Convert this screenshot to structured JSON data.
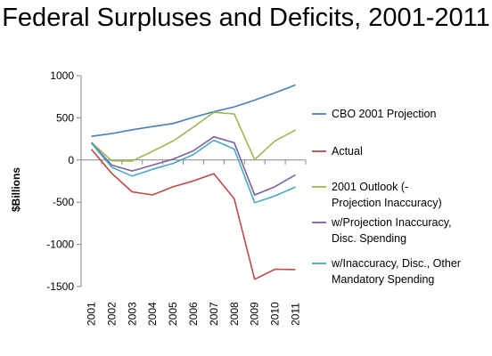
{
  "title": "Federal Surpluses and Deficits, 2001-2011",
  "chart_data": {
    "type": "line",
    "title": "Federal Surpluses and Deficits, 2001-2011",
    "xlabel": "",
    "ylabel": "$Billions",
    "ylim": [
      -1500,
      1000
    ],
    "yticks": [
      1000,
      500,
      0,
      -500,
      -1000,
      -1500
    ],
    "ytick_labels": [
      "1000",
      "500",
      "0",
      "-500",
      "-1000",
      "-1500"
    ],
    "x": [
      "2001",
      "2002",
      "2003",
      "2004",
      "2005",
      "2006",
      "2007",
      "2008",
      "2009",
      "2010",
      "2011"
    ],
    "grid": false,
    "legend_position": "right",
    "series": [
      {
        "name": "CBO 2001 Projection",
        "color": "#4a7ebb",
        "values": [
          281,
          313,
          359,
          397,
          433,
          505,
          573,
          630,
          710,
          796,
          889
        ]
      },
      {
        "name": "Actual",
        "color": "#be4b48",
        "values": [
          128,
          -158,
          -378,
          -413,
          -318,
          -248,
          -161,
          -459,
          -1413,
          -1294,
          -1299
        ]
      },
      {
        "name": "2001 Outlook (-Projection Inaccuracy)",
        "color": "#98b954",
        "values": [
          210,
          -10,
          -12,
          103,
          225,
          390,
          565,
          545,
          5,
          227,
          355
        ]
      },
      {
        "name": "w/Projection Inaccuracy, Disc. Spending",
        "color": "#7d60a0",
        "values": [
          205,
          -60,
          -130,
          -60,
          10,
          110,
          275,
          205,
          -415,
          -315,
          -175
        ]
      },
      {
        "name": "w/Inaccuracy, Disc., Other Mandatory Spending",
        "color": "#46aac5",
        "values": [
          200,
          -85,
          -190,
          -110,
          -40,
          65,
          235,
          130,
          -505,
          -425,
          -320
        ]
      }
    ],
    "legend_lines": [
      [
        "CBO 2001 Projection"
      ],
      [
        "Actual"
      ],
      [
        "2001 Outlook (-",
        "Projection Inaccuracy)"
      ],
      [
        "w/Projection Inaccuracy,",
        "Disc. Spending"
      ],
      [
        "w/Inaccuracy, Disc., Other",
        "Mandatory Spending"
      ]
    ]
  }
}
